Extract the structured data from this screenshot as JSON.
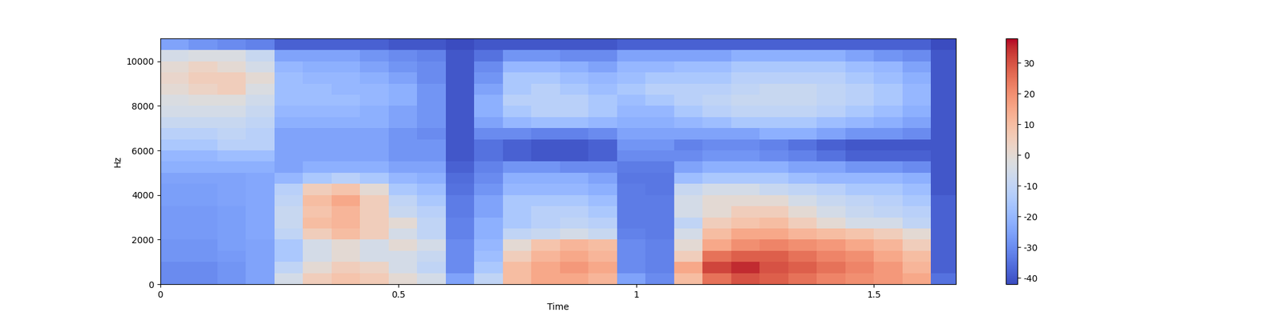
{
  "chart_data": {
    "type": "heatmap",
    "x_label": "Time",
    "y_label": "Hz",
    "color": "coolwarm",
    "x": [
      0,
      0.06,
      0.12,
      0.18,
      0.24,
      0.3,
      0.36,
      0.42,
      0.48,
      0.54,
      0.6,
      0.66,
      0.72,
      0.78,
      0.84,
      0.9,
      0.96,
      1.02,
      1.08,
      1.14,
      1.2,
      1.26,
      1.32,
      1.38,
      1.44,
      1.5,
      1.56,
      1.62,
      1.672
    ],
    "y": [
      0,
      500,
      1000,
      1500,
      2000,
      2500,
      3000,
      3500,
      4000,
      4500,
      5000,
      5500,
      6000,
      6500,
      7000,
      7500,
      8000,
      8500,
      9000,
      9500,
      10000,
      10500,
      11025
    ],
    "xlim": [
      0,
      1.672
    ],
    "ylim": [
      0,
      11025
    ],
    "xticks": [
      0,
      0.5,
      1,
      1.5
    ],
    "yticks": [
      0,
      2000,
      4000,
      6000,
      8000,
      10000
    ],
    "colorbar": {
      "range": [
        -42,
        38
      ],
      "ticks": [
        -40,
        -30,
        -20,
        -10,
        0,
        10,
        20,
        30
      ]
    },
    "cells": [
      [
        -30,
        -30,
        -28,
        -25,
        -5,
        5,
        8,
        6,
        0,
        -5,
        -25,
        -10,
        10,
        15,
        15,
        12,
        -25,
        -30,
        10,
        25,
        30,
        28,
        25,
        22,
        20,
        18,
        15,
        -35
      ],
      [
        -30,
        -30,
        -28,
        -25,
        -10,
        0,
        5,
        3,
        -5,
        -10,
        -30,
        -15,
        10,
        15,
        18,
        15,
        -30,
        -32,
        15,
        32,
        35,
        30,
        28,
        25,
        22,
        18,
        12,
        -38
      ],
      [
        -28,
        -28,
        -27,
        -25,
        -15,
        -5,
        0,
        -5,
        -5,
        -8,
        -30,
        -18,
        5,
        12,
        15,
        12,
        -30,
        -32,
        5,
        25,
        28,
        28,
        25,
        22,
        20,
        15,
        10,
        -38
      ],
      [
        -28,
        -28,
        -26,
        -25,
        -15,
        -5,
        0,
        -5,
        0,
        -5,
        -30,
        -20,
        0,
        8,
        12,
        10,
        -30,
        -32,
        0,
        15,
        20,
        22,
        20,
        18,
        15,
        12,
        5,
        -38
      ],
      [
        -27,
        -27,
        -26,
        -24,
        -10,
        5,
        10,
        5,
        -5,
        -10,
        -32,
        -22,
        -10,
        -8,
        -5,
        -8,
        -32,
        -33,
        -5,
        10,
        15,
        15,
        12,
        10,
        8,
        5,
        0,
        -38
      ],
      [
        -27,
        -27,
        -26,
        -24,
        -8,
        10,
        12,
        5,
        0,
        -10,
        -32,
        -22,
        -15,
        -12,
        -10,
        -12,
        -33,
        -33,
        -10,
        5,
        8,
        10,
        5,
        0,
        -5,
        -5,
        -10,
        -38
      ],
      [
        -27,
        -27,
        -26,
        -24,
        -8,
        8,
        12,
        5,
        -8,
        -12,
        -33,
        -25,
        -15,
        -12,
        -12,
        -15,
        -33,
        -33,
        -5,
        0,
        5,
        5,
        0,
        -5,
        -8,
        -10,
        -12,
        -38
      ],
      [
        -26,
        -26,
        -25,
        -24,
        -10,
        10,
        15,
        5,
        -10,
        -15,
        -33,
        -25,
        -15,
        -15,
        -15,
        -18,
        -33,
        -33,
        -5,
        0,
        0,
        0,
        -5,
        -8,
        -10,
        -12,
        -15,
        -38
      ],
      [
        -26,
        -26,
        -25,
        -24,
        -12,
        5,
        8,
        0,
        -15,
        -18,
        -35,
        -28,
        -20,
        -20,
        -20,
        -22,
        -33,
        -34,
        -8,
        -5,
        -5,
        -8,
        -10,
        -12,
        -15,
        -15,
        -18,
        -40
      ],
      [
        -25,
        -25,
        -25,
        -24,
        -20,
        -15,
        -12,
        -15,
        -20,
        -22,
        -36,
        -30,
        -22,
        -22,
        -22,
        -25,
        -34,
        -34,
        -18,
        -15,
        -15,
        -15,
        -18,
        -20,
        -20,
        -20,
        -22,
        -40
      ],
      [
        -22,
        -22,
        -22,
        -22,
        -25,
        -22,
        -22,
        -22,
        -25,
        -25,
        -38,
        -32,
        -28,
        -28,
        -30,
        -30,
        -33,
        -33,
        -25,
        -22,
        -22,
        -22,
        -25,
        -25,
        -28,
        -28,
        -30,
        -40
      ],
      [
        -20,
        -20,
        -18,
        -18,
        -25,
        -25,
        -25,
        -25,
        -28,
        -28,
        -40,
        -35,
        -38,
        -40,
        -40,
        -38,
        -30,
        -30,
        -30,
        -28,
        -28,
        -30,
        -32,
        -35,
        -38,
        -38,
        -38,
        -40
      ],
      [
        -15,
        -15,
        -12,
        -12,
        -25,
        -25,
        -25,
        -25,
        -28,
        -28,
        -40,
        -35,
        -38,
        -40,
        -40,
        -38,
        -28,
        -28,
        -32,
        -30,
        -30,
        -32,
        -35,
        -38,
        -40,
        -40,
        -40,
        -40
      ],
      [
        -12,
        -12,
        -10,
        -12,
        -25,
        -25,
        -25,
        -25,
        -28,
        -30,
        -40,
        -30,
        -30,
        -32,
        -32,
        -30,
        -25,
        -25,
        -25,
        -25,
        -25,
        -22,
        -22,
        -25,
        -28,
        -28,
        -30,
        -40
      ],
      [
        -8,
        -8,
        -8,
        -10,
        -22,
        -22,
        -22,
        -22,
        -25,
        -28,
        -40,
        -25,
        -20,
        -18,
        -18,
        -20,
        -22,
        -22,
        -20,
        -18,
        -15,
        -15,
        -15,
        -18,
        -20,
        -22,
        -25,
        -40
      ],
      [
        -5,
        -5,
        -5,
        -8,
        -20,
        -20,
        -20,
        -22,
        -25,
        -28,
        -40,
        -22,
        -15,
        -12,
        -12,
        -15,
        -20,
        -20,
        -15,
        -12,
        -10,
        -10,
        -10,
        -12,
        -15,
        -18,
        -22,
        -40
      ],
      [
        -3,
        -2,
        -2,
        -6,
        -18,
        -18,
        -18,
        -20,
        -22,
        -28,
        -40,
        -22,
        -12,
        -12,
        -12,
        -15,
        -18,
        -15,
        -12,
        -10,
        -8,
        -8,
        -8,
        -10,
        -12,
        -15,
        -20,
        -40
      ],
      [
        0,
        3,
        5,
        -3,
        -18,
        -18,
        -20,
        -20,
        -22,
        -28,
        -40,
        -25,
        -15,
        -12,
        -15,
        -18,
        -15,
        -12,
        -12,
        -12,
        -10,
        -8,
        -8,
        -10,
        -12,
        -15,
        -20,
        -40
      ],
      [
        2,
        5,
        5,
        0,
        -18,
        -20,
        -20,
        -22,
        -25,
        -30,
        -40,
        -28,
        -15,
        -15,
        -18,
        -20,
        -18,
        -15,
        -15,
        -15,
        -12,
        -12,
        -12,
        -12,
        -15,
        -18,
        -22,
        -40
      ],
      [
        0,
        3,
        0,
        -5,
        -20,
        -22,
        -22,
        -25,
        -28,
        -30,
        -40,
        -30,
        -20,
        -20,
        -22,
        -25,
        -20,
        -20,
        -18,
        -18,
        -15,
        -15,
        -15,
        -15,
        -18,
        -20,
        -25,
        -40
      ],
      [
        -5,
        -3,
        -3,
        -8,
        -25,
        -25,
        -25,
        -28,
        -30,
        -32,
        -40,
        -35,
        -28,
        -28,
        -30,
        -30,
        -25,
        -25,
        -25,
        -25,
        -22,
        -22,
        -22,
        -22,
        -25,
        -28,
        -30,
        -40
      ],
      [
        -25,
        -28,
        -30,
        -32,
        -38,
        -38,
        -38,
        -38,
        -40,
        -40,
        -42,
        -40,
        -40,
        -40,
        -40,
        -40,
        -38,
        -38,
        -38,
        -38,
        -38,
        -38,
        -38,
        -38,
        -38,
        -38,
        -38,
        -42
      ]
    ]
  }
}
